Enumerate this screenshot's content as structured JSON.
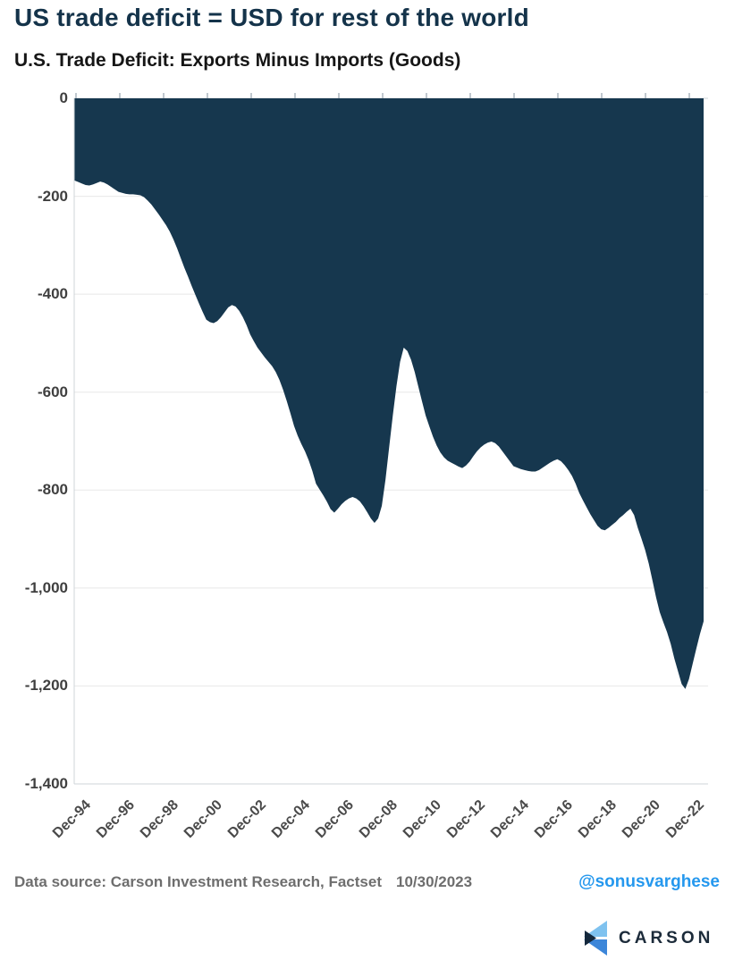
{
  "page": {
    "title": "US trade deficit = USD for rest of the world",
    "subtitle": "U.S. Trade Deficit: Exports Minus Imports (Goods)"
  },
  "footer": {
    "source_label": "Data source: Carson Investment Research, Factset",
    "date": "10/30/2023",
    "handle": "@sonusvarghese"
  },
  "logo": {
    "text": "CARSON",
    "mark_colors": {
      "top": "#7fc2ef",
      "bottom": "#3c86d9",
      "notch": "#14283c"
    }
  },
  "colors": {
    "title_navy": "#14334A",
    "area_fill": "#16374e",
    "gridline": "#e8e8e8",
    "axis_border": "#cfd4d8",
    "tick_mark": "#aab6bf",
    "handle_blue": "#2598ee"
  },
  "chart_data": {
    "type": "area",
    "title": "U.S. Trade Deficit: Exports Minus Imports (Goods)",
    "x_start": "Dec-1994",
    "x_end": "Aug-2023",
    "point_interval_months": 2,
    "x_tick_labels": [
      "Dec-94",
      "Dec-96",
      "Dec-98",
      "Dec-00",
      "Dec-02",
      "Dec-04",
      "Dec-06",
      "Dec-08",
      "Dec-10",
      "Dec-12",
      "Dec-14",
      "Dec-16",
      "Dec-18",
      "Dec-20",
      "Dec-22"
    ],
    "y_tick_labels": [
      "0",
      "-200",
      "-400",
      "-600",
      "-800",
      "-1,000",
      "-1,200",
      "-1,400"
    ],
    "y_ticks": [
      0,
      -200,
      -400,
      -600,
      -800,
      -1000,
      -1200,
      -1400
    ],
    "ylim": [
      -1400,
      0
    ],
    "grid": "horizontal-only",
    "legend": "none",
    "series": [
      {
        "name": "U.S. goods trade balance (exports minus imports)",
        "values": [
          -168,
          -171,
          -174,
          -177,
          -178,
          -176,
          -173,
          -170,
          -172,
          -176,
          -181,
          -186,
          -191,
          -193,
          -195,
          -196,
          -196,
          -197,
          -198,
          -202,
          -209,
          -217,
          -227,
          -237,
          -248,
          -259,
          -272,
          -288,
          -306,
          -326,
          -346,
          -364,
          -383,
          -401,
          -419,
          -436,
          -452,
          -457,
          -459,
          -455,
          -447,
          -437,
          -427,
          -422,
          -425,
          -434,
          -447,
          -463,
          -482,
          -496,
          -509,
          -519,
          -529,
          -538,
          -547,
          -559,
          -575,
          -595,
          -618,
          -643,
          -669,
          -689,
          -706,
          -721,
          -739,
          -761,
          -787,
          -799,
          -811,
          -824,
          -839,
          -846,
          -838,
          -829,
          -822,
          -817,
          -814,
          -817,
          -823,
          -833,
          -845,
          -858,
          -867,
          -858,
          -832,
          -779,
          -713,
          -648,
          -588,
          -538,
          -509,
          -516,
          -534,
          -559,
          -589,
          -619,
          -648,
          -670,
          -691,
          -709,
          -723,
          -733,
          -740,
          -744,
          -748,
          -752,
          -755,
          -750,
          -742,
          -731,
          -721,
          -713,
          -707,
          -703,
          -701,
          -704,
          -711,
          -721,
          -731,
          -741,
          -751,
          -754,
          -757,
          -759,
          -761,
          -762,
          -762,
          -759,
          -754,
          -749,
          -744,
          -740,
          -737,
          -741,
          -749,
          -759,
          -771,
          -787,
          -806,
          -821,
          -835,
          -849,
          -861,
          -873,
          -880,
          -882,
          -877,
          -871,
          -865,
          -857,
          -851,
          -844,
          -838,
          -851,
          -877,
          -899,
          -922,
          -950,
          -984,
          -1019,
          -1049,
          -1070,
          -1090,
          -1114,
          -1144,
          -1170,
          -1196,
          -1206,
          -1186,
          -1155,
          -1124,
          -1094,
          -1068
        ]
      }
    ]
  }
}
